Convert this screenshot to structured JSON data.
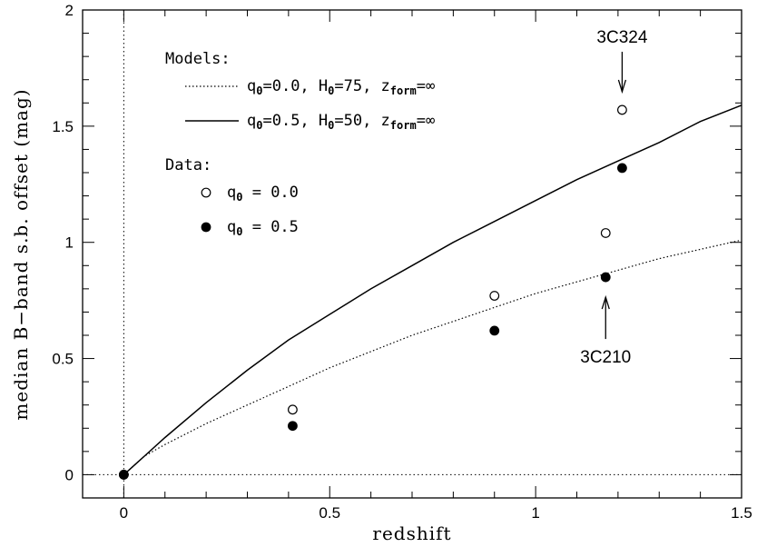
{
  "chart_data": {
    "type": "scatter",
    "xlabel": "redshift",
    "ylabel": "median B−band s.b. offset (mag)",
    "xlim": [
      -0.1,
      1.5
    ],
    "ylim": [
      -0.1,
      2.0
    ],
    "x_ticks": [
      {
        "value": 0,
        "label": "0"
      },
      {
        "value": 0.5,
        "label": "0.5"
      },
      {
        "value": 1,
        "label": "1"
      },
      {
        "value": 1.5,
        "label": "1.5"
      }
    ],
    "y_ticks": [
      {
        "value": 0,
        "label": "0"
      },
      {
        "value": 0.5,
        "label": "0.5"
      },
      {
        "value": 1,
        "label": "1"
      },
      {
        "value": 1.5,
        "label": "1.5"
      },
      {
        "value": 2,
        "label": "2"
      }
    ],
    "reference_lines": {
      "x_zero": "dotted",
      "y_zero": "dotted"
    },
    "legend": {
      "models_heading": "Models:",
      "data_heading": "Data:",
      "model_entries": [
        {
          "style": "dotted",
          "text_q": "q",
          "sub_q": "0",
          "text_q_val": "=0.0, H",
          "sub_h": "0",
          "text_h_val": "=75, z",
          "sub_z": "form",
          "text_z_val": "=∞"
        },
        {
          "style": "solid",
          "text_q": "q",
          "sub_q": "0",
          "text_q_val": "=0.5, H",
          "sub_h": "0",
          "text_h_val": "=50, z",
          "sub_z": "form",
          "text_z_val": "=∞"
        }
      ],
      "data_entries": [
        {
          "marker": "open",
          "text_q": "q",
          "sub_q": "0",
          "text_val": " = 0.0"
        },
        {
          "marker": "filled",
          "text_q": "q",
          "sub_q": "0",
          "text_val": " = 0.5"
        }
      ]
    },
    "series": [
      {
        "key": "model_q0_0.0",
        "kind": "line",
        "style": "dotted",
        "x": [
          0,
          0.05,
          0.1,
          0.2,
          0.3,
          0.4,
          0.5,
          0.6,
          0.7,
          0.8,
          0.9,
          1.0,
          1.1,
          1.2,
          1.3,
          1.4,
          1.5
        ],
        "y": [
          0,
          0.08,
          0.13,
          0.22,
          0.3,
          0.38,
          0.46,
          0.53,
          0.6,
          0.66,
          0.72,
          0.78,
          0.83,
          0.88,
          0.93,
          0.97,
          1.01
        ]
      },
      {
        "key": "model_q0_0.5",
        "kind": "line",
        "style": "solid",
        "x": [
          0,
          0.05,
          0.1,
          0.2,
          0.3,
          0.4,
          0.5,
          0.6,
          0.7,
          0.8,
          0.9,
          1.0,
          1.1,
          1.2,
          1.3,
          1.4,
          1.5
        ],
        "y": [
          0,
          0.08,
          0.16,
          0.31,
          0.45,
          0.58,
          0.69,
          0.8,
          0.9,
          1.0,
          1.09,
          1.18,
          1.27,
          1.35,
          1.43,
          1.52,
          1.59
        ]
      },
      {
        "key": "data_q0_0.0",
        "kind": "points",
        "marker": "open",
        "x": [
          0,
          0.41,
          0.9,
          1.17,
          1.21
        ],
        "y": [
          0,
          0.28,
          0.77,
          1.04,
          1.57
        ]
      },
      {
        "key": "data_q0_0.5",
        "kind": "points",
        "marker": "filled",
        "x": [
          0,
          0.41,
          0.9,
          1.17,
          1.21
        ],
        "y": [
          0,
          0.21,
          0.62,
          0.85,
          1.32
        ]
      }
    ],
    "annotations": [
      {
        "text": "3C324",
        "x": 1.21,
        "y": 1.57,
        "arrow": "down"
      },
      {
        "text": "3C210",
        "x": 1.17,
        "y": 0.85,
        "arrow": "up"
      }
    ]
  }
}
